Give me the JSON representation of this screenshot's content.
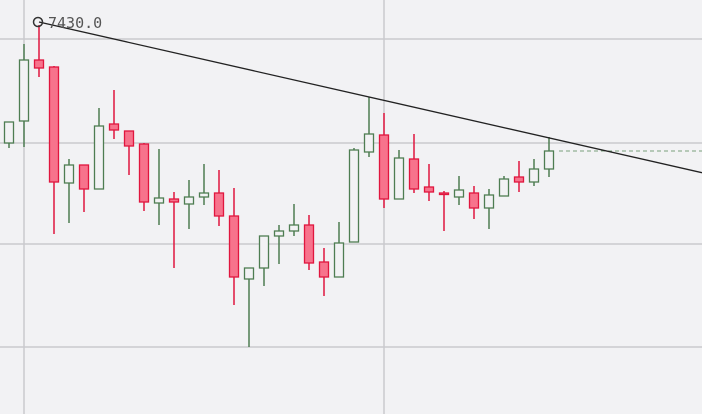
{
  "chart_data": {
    "type": "candlestick",
    "title": "",
    "xlabel": "",
    "ylabel": "",
    "grid": true,
    "annotation": {
      "label": "7430.0",
      "price": 7430,
      "candle": 3
    },
    "trendline": {
      "from": {
        "candle": 3,
        "price": 7430
      },
      "through": {
        "candle": 25,
        "price": 7394
      },
      "extend": "right",
      "color": "#222222"
    },
    "last_price_line": {
      "style": "dashed",
      "color": "#7aa07c"
    },
    "colors": {
      "up_stroke": "#4e7d52",
      "up_fill": "#f2f2f4",
      "down_stroke": "#e0163e",
      "down_fill": "#f7738c",
      "background": "#f2f2f4",
      "grid": "#c9c9cd"
    },
    "ohlc_fields": [
      "open",
      "high",
      "low",
      "close"
    ],
    "candles": [
      [
        7371,
        7381.5,
        7368.5,
        7381.5
      ],
      [
        7382,
        7420.5,
        7369,
        7412.5
      ],
      [
        7412.5,
        7430,
        7404,
        7408.5
      ],
      [
        7409,
        7409.5,
        7325.5,
        7351.5
      ],
      [
        7351,
        7363,
        7331,
        7360
      ],
      [
        7360,
        7360,
        7336.5,
        7348
      ],
      [
        7348,
        7388.5,
        7348,
        7379.5
      ],
      [
        7380.5,
        7397.5,
        7373,
        7377.5
      ],
      [
        7377,
        7377,
        7355,
        7369.5
      ],
      [
        7370.5,
        7371,
        7337,
        7341.5
      ],
      [
        7341,
        7368,
        7330,
        7343.5
      ],
      [
        7343,
        7346.5,
        7308.5,
        7341.5
      ],
      [
        7340.5,
        7352.5,
        7328,
        7344
      ],
      [
        7344,
        7360.5,
        7340,
        7346
      ],
      [
        7346,
        7357.5,
        7329.5,
        7334.5
      ],
      [
        7334.5,
        7348.5,
        7290,
        7304
      ],
      [
        7303,
        7308.5,
        7269,
        7308.5
      ],
      [
        7308.5,
        7324.5,
        7299.5,
        7324.5
      ],
      [
        7324.5,
        7330,
        7310.5,
        7327
      ],
      [
        7327,
        7340.5,
        7324.5,
        7330
      ],
      [
        7330,
        7335,
        7307.5,
        7311
      ],
      [
        7311.5,
        7318.5,
        7294.5,
        7304
      ],
      [
        7304,
        7331.5,
        7304,
        7321
      ],
      [
        7321.5,
        7368.5,
        7321.5,
        7367.5
      ],
      [
        7366.5,
        7394,
        7364,
        7375.5
      ],
      [
        7375,
        7386,
        7338.5,
        7343
      ],
      [
        7343,
        7367.5,
        7343,
        7363.5
      ],
      [
        7363,
        7375.5,
        7346,
        7348
      ],
      [
        7349,
        7360.5,
        7342,
        7346.5
      ],
      [
        7346,
        7347,
        7327,
        7345.5
      ],
      [
        7344,
        7354.5,
        7340,
        7347.5
      ],
      [
        7346,
        7349.5,
        7333,
        7338.5
      ],
      [
        7338.5,
        7348,
        7328,
        7345
      ],
      [
        7344.5,
        7354.5,
        7344.5,
        7353
      ],
      [
        7354,
        7362,
        7346.5,
        7351.5
      ],
      [
        7351.5,
        7363,
        7349.5,
        7358
      ],
      [
        7358,
        7374,
        7354,
        7367
      ]
    ]
  }
}
